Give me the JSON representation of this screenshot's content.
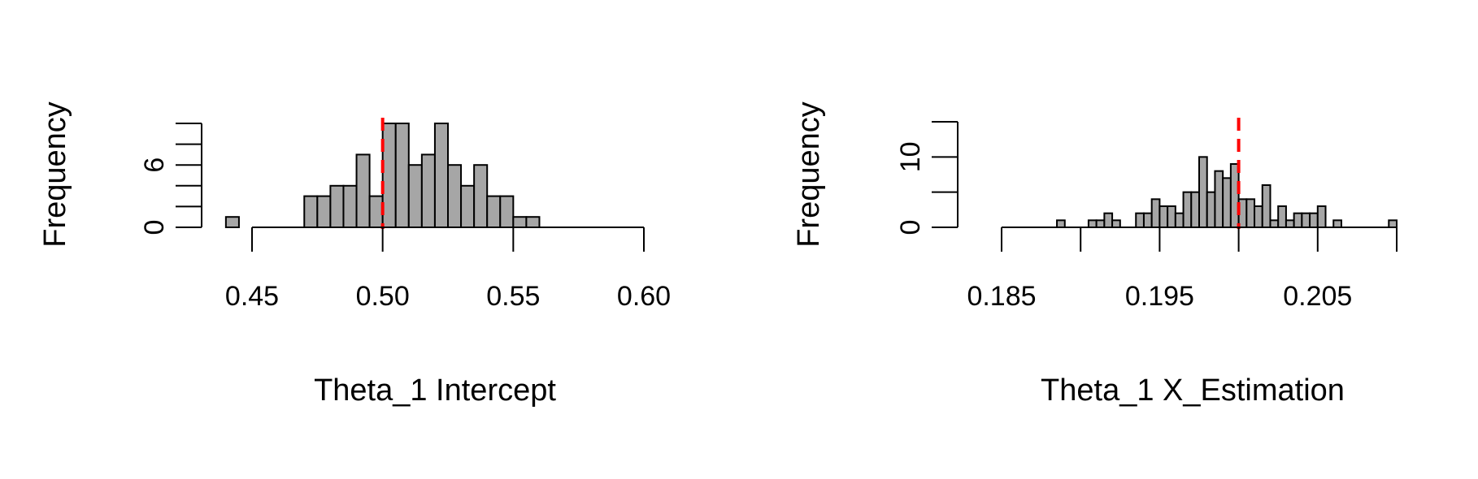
{
  "chart_data": [
    {
      "type": "bar",
      "subtype": "histogram",
      "title": "",
      "xlabel": "Theta_1 Intercept",
      "ylabel": "Frequency",
      "xlim": [
        0.45,
        0.6
      ],
      "ylim": [
        0,
        10
      ],
      "x_ticks": [
        0.45,
        0.5,
        0.55,
        0.6
      ],
      "x_tick_labels": [
        "0.45",
        "0.50",
        "0.55",
        "0.60"
      ],
      "y_ticks": [
        0,
        2,
        4,
        6,
        8,
        10
      ],
      "y_tick_labels": [
        "0",
        "",
        "",
        "6",
        "",
        ""
      ],
      "bin_width": 0.005,
      "bins": [
        {
          "x0": 0.44,
          "x1": 0.445,
          "count": 1
        },
        {
          "x0": 0.47,
          "x1": 0.475,
          "count": 3
        },
        {
          "x0": 0.475,
          "x1": 0.48,
          "count": 3
        },
        {
          "x0": 0.48,
          "x1": 0.485,
          "count": 4
        },
        {
          "x0": 0.485,
          "x1": 0.49,
          "count": 4
        },
        {
          "x0": 0.49,
          "x1": 0.495,
          "count": 7
        },
        {
          "x0": 0.495,
          "x1": 0.5,
          "count": 3
        },
        {
          "x0": 0.5,
          "x1": 0.505,
          "count": 10
        },
        {
          "x0": 0.505,
          "x1": 0.51,
          "count": 10
        },
        {
          "x0": 0.51,
          "x1": 0.515,
          "count": 6
        },
        {
          "x0": 0.515,
          "x1": 0.52,
          "count": 7
        },
        {
          "x0": 0.52,
          "x1": 0.525,
          "count": 10
        },
        {
          "x0": 0.525,
          "x1": 0.53,
          "count": 6
        },
        {
          "x0": 0.53,
          "x1": 0.535,
          "count": 4
        },
        {
          "x0": 0.535,
          "x1": 0.54,
          "count": 6
        },
        {
          "x0": 0.54,
          "x1": 0.545,
          "count": 3
        },
        {
          "x0": 0.545,
          "x1": 0.55,
          "count": 3
        },
        {
          "x0": 0.55,
          "x1": 0.555,
          "count": 1
        },
        {
          "x0": 0.555,
          "x1": 0.56,
          "count": 1
        }
      ],
      "ref_line": {
        "x": 0.5,
        "color": "#ff0000",
        "style": "dashed"
      },
      "bar_color": "#a6a6a6"
    },
    {
      "type": "bar",
      "subtype": "histogram",
      "title": "",
      "xlabel": "Theta_1 X_Estimation",
      "ylabel": "Frequency",
      "xlim": [
        0.185,
        0.21
      ],
      "ylim": [
        0,
        15
      ],
      "x_ticks": [
        0.185,
        0.19,
        0.195,
        0.2,
        0.205,
        0.21
      ],
      "x_tick_labels": [
        "0.185",
        "",
        "0.195",
        "",
        "0.205",
        ""
      ],
      "y_ticks": [
        0,
        5,
        10,
        15
      ],
      "y_tick_labels": [
        "0",
        "",
        "10",
        ""
      ],
      "bin_width": 0.0005,
      "bins": [
        {
          "x0": 0.1885,
          "x1": 0.189,
          "count": 1
        },
        {
          "x0": 0.1905,
          "x1": 0.191,
          "count": 1
        },
        {
          "x0": 0.191,
          "x1": 0.1915,
          "count": 1
        },
        {
          "x0": 0.1915,
          "x1": 0.192,
          "count": 2
        },
        {
          "x0": 0.192,
          "x1": 0.1925,
          "count": 1
        },
        {
          "x0": 0.1935,
          "x1": 0.194,
          "count": 2
        },
        {
          "x0": 0.194,
          "x1": 0.1945,
          "count": 2
        },
        {
          "x0": 0.1945,
          "x1": 0.195,
          "count": 4
        },
        {
          "x0": 0.195,
          "x1": 0.1955,
          "count": 3
        },
        {
          "x0": 0.1955,
          "x1": 0.196,
          "count": 3
        },
        {
          "x0": 0.196,
          "x1": 0.1965,
          "count": 2
        },
        {
          "x0": 0.1965,
          "x1": 0.197,
          "count": 5
        },
        {
          "x0": 0.197,
          "x1": 0.1975,
          "count": 5
        },
        {
          "x0": 0.1975,
          "x1": 0.198,
          "count": 10
        },
        {
          "x0": 0.198,
          "x1": 0.1985,
          "count": 5
        },
        {
          "x0": 0.1985,
          "x1": 0.199,
          "count": 8
        },
        {
          "x0": 0.199,
          "x1": 0.1995,
          "count": 7
        },
        {
          "x0": 0.1995,
          "x1": 0.2,
          "count": 9
        },
        {
          "x0": 0.2,
          "x1": 0.2005,
          "count": 4
        },
        {
          "x0": 0.2005,
          "x1": 0.201,
          "count": 4
        },
        {
          "x0": 0.201,
          "x1": 0.2015,
          "count": 3
        },
        {
          "x0": 0.2015,
          "x1": 0.202,
          "count": 6
        },
        {
          "x0": 0.202,
          "x1": 0.2025,
          "count": 1
        },
        {
          "x0": 0.2025,
          "x1": 0.203,
          "count": 3
        },
        {
          "x0": 0.203,
          "x1": 0.2035,
          "count": 1
        },
        {
          "x0": 0.2035,
          "x1": 0.204,
          "count": 2
        },
        {
          "x0": 0.204,
          "x1": 0.2045,
          "count": 2
        },
        {
          "x0": 0.2045,
          "x1": 0.205,
          "count": 2
        },
        {
          "x0": 0.205,
          "x1": 0.2055,
          "count": 3
        },
        {
          "x0": 0.206,
          "x1": 0.2065,
          "count": 1
        },
        {
          "x0": 0.2095,
          "x1": 0.21,
          "count": 1
        }
      ],
      "ref_line": {
        "x": 0.2,
        "color": "#ff0000",
        "style": "dashed"
      },
      "bar_color": "#a6a6a6"
    }
  ]
}
